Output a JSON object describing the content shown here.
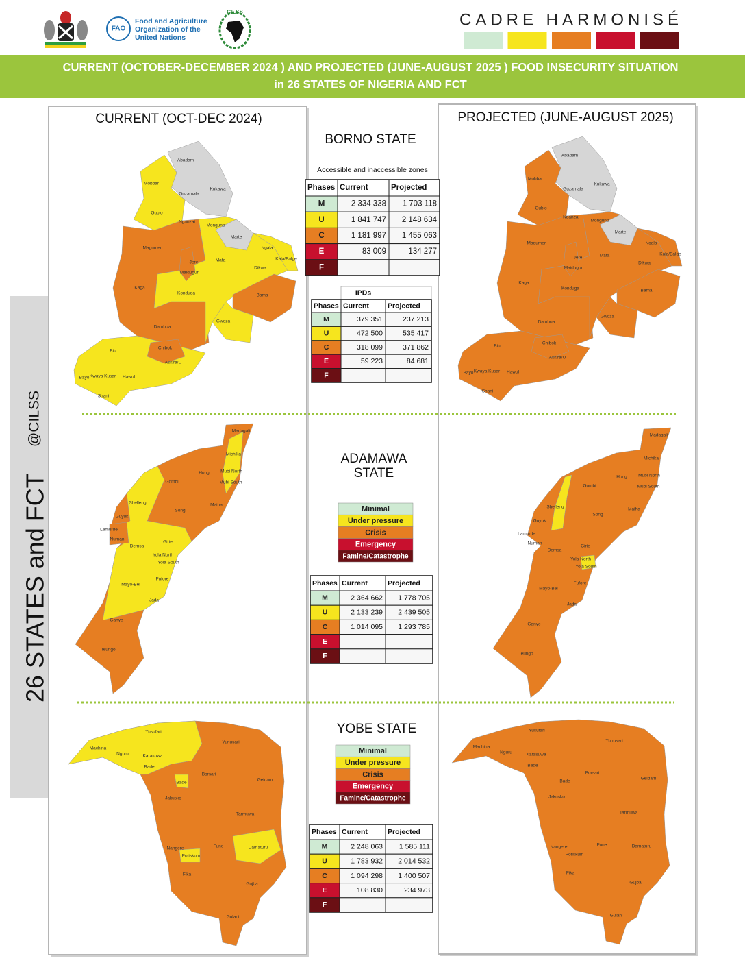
{
  "header": {
    "brand": "CADRE HARMONISÉ",
    "fao_logo": "FAO",
    "fao_name": [
      "Food and Agriculture",
      "Organization of the",
      "United Nations"
    ],
    "cilss": "CILSS",
    "title": [
      "CURRENT (OCTOBER-DECEMBER 2024 ) AND PROJECTED (JUNE-AUGUST 2025 ) FOOD INSECURITY SITUATION",
      "in 26 STATES OF NIGERIA AND FCT"
    ]
  },
  "side_label": {
    "main": "26 STATES and FCT",
    "handle": "@CILSS"
  },
  "panels": {
    "current": "CURRENT (OCT-DEC 2024)",
    "projected": "PROJECTED (JUNE-AUGUST 2025)"
  },
  "legend": [
    {
      "code": "M",
      "label": "Minimal",
      "color": "#cfead3"
    },
    {
      "code": "U",
      "label": "Under pressure",
      "color": "#f6e51e"
    },
    {
      "code": "C",
      "label": "Crisis",
      "color": "#e67e22"
    },
    {
      "code": "E",
      "label": "Emergency",
      "color": "#c8102e"
    },
    {
      "code": "F",
      "label": "Famine/Catastrophe",
      "color": "#6b0f14"
    }
  ],
  "states": [
    {
      "name": [
        "BORNO STATE"
      ],
      "lgas": [
        "Abadam",
        "Mobbar",
        "Kukawa",
        "Guzamala",
        "Gubio",
        "Nganzai",
        "Monguno",
        "Marte",
        "Ngala",
        "Kala/Balge",
        "Magumeri",
        "Jere",
        "Maiduguri",
        "Mafa",
        "Dikwa",
        "Kaga",
        "Konduga",
        "Bama",
        "Gwoza",
        "Damboa",
        "Biu",
        "Chibok",
        "Askira/U",
        "Bayo",
        "Kwaya Kusar",
        "Hawul",
        "Shani"
      ],
      "tables": [
        {
          "caption": "Accessible and inaccessible zones",
          "columns": [
            "Phases",
            "Current",
            "Projected"
          ],
          "rows": [
            [
              "M",
              "2 334 338",
              "1 703 118"
            ],
            [
              "U",
              "1 841 747",
              "2 148 634"
            ],
            [
              "C",
              "1 181 997",
              "1 455 063"
            ],
            [
              "E",
              "83 009",
              "134 277"
            ],
            [
              "F",
              null,
              null
            ]
          ]
        },
        {
          "caption": "IPDs",
          "columns": [
            "Phases",
            "Current",
            "Projected"
          ],
          "rows": [
            [
              "M",
              "379 351",
              "237 213"
            ],
            [
              "U",
              "472 500",
              "535 417"
            ],
            [
              "C",
              "318 099",
              "371 862"
            ],
            [
              "E",
              "59 223",
              "84 681"
            ],
            [
              "F",
              null,
              null
            ]
          ]
        }
      ]
    },
    {
      "name": [
        "ADAMAWA",
        "STATE"
      ],
      "lgas": [
        "Madagali",
        "Michika",
        "Hong",
        "Mubi North",
        "Gombi",
        "Mubi South",
        "Shelleng",
        "Maiha",
        "Song",
        "Guyuk",
        "Lamurde",
        "Numan",
        "Demsa",
        "Girie",
        "Yola North",
        "Yola South",
        "Fufore",
        "Mayo-Bel",
        "Jada",
        "Ganye",
        "Teungo"
      ],
      "tables": [
        {
          "columns": [
            "Phases",
            "Current",
            "Projected"
          ],
          "rows": [
            [
              "M",
              "2 364 662",
              "1 778 705"
            ],
            [
              "U",
              "2 133 239",
              "2 439 505"
            ],
            [
              "C",
              "1 014 095",
              "1 293 785"
            ],
            [
              "E",
              null,
              null
            ],
            [
              "F",
              null,
              null
            ]
          ]
        }
      ]
    },
    {
      "name": [
        "YOBE STATE"
      ],
      "lgas": [
        "Yusufari",
        "Yunusari",
        "Machina",
        "Nguru",
        "Karasuwa",
        "Bade",
        "Bade",
        "Borsari",
        "Geidam",
        "Jakusko",
        "Tarmuwa",
        "Nangere",
        "Fune",
        "Damaturu",
        "Potiskum",
        "Fika",
        "Gujba",
        "Gulani"
      ],
      "tables": [
        {
          "columns": [
            "Phases",
            "Current",
            "Projected"
          ],
          "rows": [
            [
              "M",
              "2 248 063",
              "1 585 111"
            ],
            [
              "U",
              "1 783 932",
              "2 014 532"
            ],
            [
              "C",
              "1 094 298",
              "1 400 507"
            ],
            [
              "E",
              "108 830",
              "234 973"
            ],
            [
              "F",
              null,
              null
            ]
          ]
        }
      ]
    }
  ]
}
